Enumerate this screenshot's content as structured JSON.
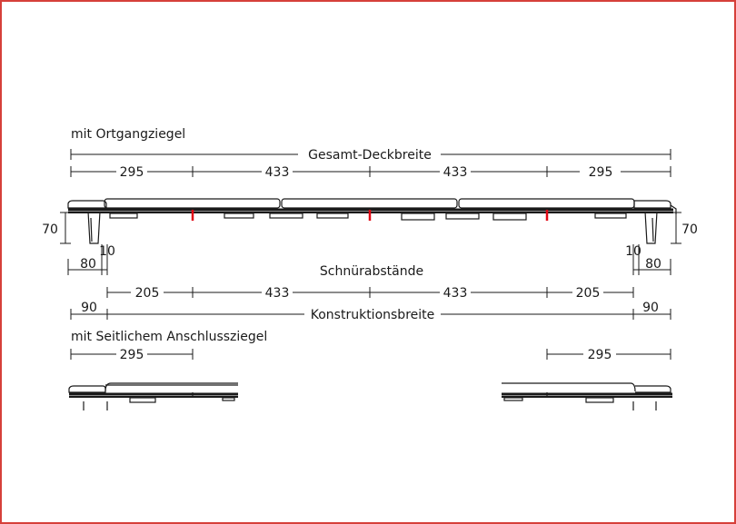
{
  "colors": {
    "frame": "#d6403a",
    "line": "#1a1a1a",
    "marker": "#e30613",
    "background": "#ffffff"
  },
  "section1": {
    "title": "mit Ortgangziegel",
    "overall_label": "Gesamt-Deckbreite",
    "deck_widths": [
      "295",
      "433",
      "433",
      "295"
    ],
    "height_left": "70",
    "height_right": "70",
    "gap_left": "10",
    "gap_right": "10",
    "overhang_left": "80",
    "overhang_right": "80",
    "string_label": "Schnürabstände",
    "string_spacings": [
      "205",
      "433",
      "433",
      "205"
    ],
    "end_left": "90",
    "end_right": "90",
    "construction_label": "Konstruktionsbreite"
  },
  "section2": {
    "title": "mit Seitlichem Anschlussziegel",
    "width_left": "295",
    "width_right": "295"
  }
}
